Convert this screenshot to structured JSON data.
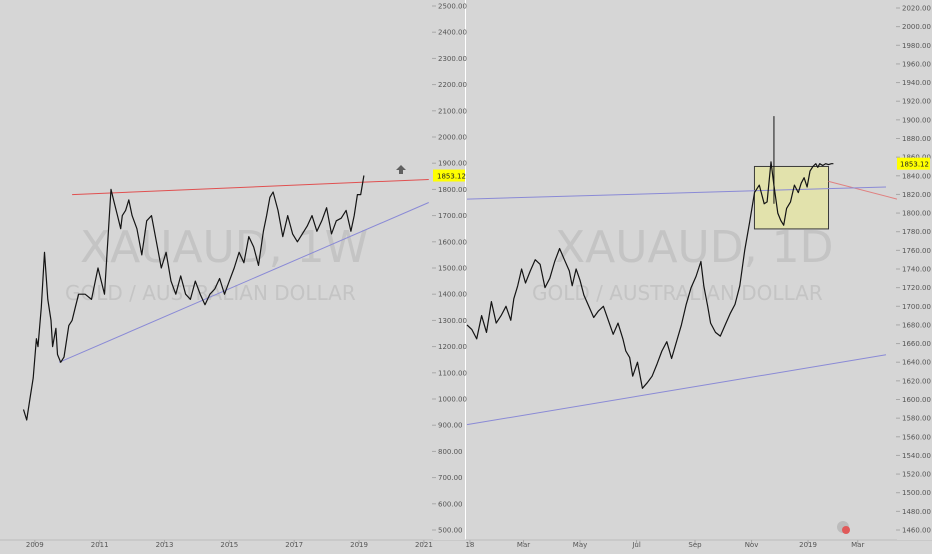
{
  "chart_data": [
    {
      "type": "line",
      "symbol": "XAUAUD",
      "interval": "1W",
      "watermark_symbol": "XAUAUD, 1W",
      "watermark_name": "GOLD / AUSTRALIAN DOLLAR",
      "price_label": "1853.12",
      "ylim": [
        500,
        2510
      ],
      "y_ticks": [
        "500.00",
        "600.00",
        "700.00",
        "800.00",
        "900.00",
        "1000.00",
        "1100.00",
        "1200.00",
        "1300.00",
        "1400.00",
        "1500.00",
        "1600.00",
        "1700.00",
        "1800.00",
        "1900.00",
        "2000.00",
        "2100.00",
        "2200.00",
        "2300.00",
        "2400.00",
        "2500.00"
      ],
      "x_ticks": [
        "2009",
        "2011",
        "2013",
        "2015",
        "2017",
        "2019",
        "2021"
      ],
      "series": [
        {
          "x": [
            2008.6,
            2008.7,
            2008.8,
            2008.9,
            2009.0,
            2009.05,
            2009.15,
            2009.25,
            2009.35,
            2009.45,
            2009.5,
            2009.6,
            2009.65,
            2009.75,
            2009.85,
            2009.9,
            2010.0,
            2010.1,
            2010.2,
            2010.3,
            2010.5,
            2010.7,
            2010.9,
            2011.1,
            2011.3,
            2011.4,
            2011.5,
            2011.6,
            2011.65,
            2011.75,
            2011.85,
            2011.95,
            2012.1,
            2012.25,
            2012.4,
            2012.55,
            2012.7,
            2012.85,
            2013.0,
            2013.15,
            2013.3,
            2013.45,
            2013.6,
            2013.75,
            2013.9,
            2014.05,
            2014.2,
            2014.35,
            2014.5,
            2014.65,
            2014.8,
            2014.95,
            2015.1,
            2015.25,
            2015.4,
            2015.55,
            2015.7,
            2015.85,
            2016.0,
            2016.1,
            2016.2,
            2016.3,
            2016.45,
            2016.6,
            2016.75,
            2016.9,
            2017.05,
            2017.2,
            2017.35,
            2017.5,
            2017.65,
            2017.8,
            2017.95,
            2018.1,
            2018.25,
            2018.4,
            2018.55,
            2018.7,
            2018.8,
            2018.9,
            2019.0,
            2019.1
          ],
          "values": [
            960,
            920,
            1000,
            1080,
            1230,
            1200,
            1350,
            1560,
            1380,
            1300,
            1200,
            1270,
            1170,
            1140,
            1160,
            1200,
            1280,
            1300,
            1350,
            1400,
            1400,
            1380,
            1500,
            1400,
            1800,
            1750,
            1700,
            1650,
            1700,
            1720,
            1760,
            1700,
            1650,
            1550,
            1680,
            1700,
            1600,
            1500,
            1560,
            1450,
            1400,
            1470,
            1400,
            1380,
            1450,
            1400,
            1360,
            1400,
            1420,
            1460,
            1400,
            1450,
            1500,
            1560,
            1520,
            1620,
            1580,
            1510,
            1640,
            1700,
            1770,
            1790,
            1720,
            1620,
            1700,
            1630,
            1600,
            1630,
            1660,
            1700,
            1640,
            1680,
            1730,
            1630,
            1680,
            1690,
            1720,
            1640,
            1700,
            1780,
            1780,
            1853
          ]
        }
      ],
      "lines": [
        {
          "name": "resistance",
          "color": "#e05050",
          "from": [
            2010.1,
            1780
          ],
          "to": [
            2021.1,
            1838
          ]
        },
        {
          "name": "support",
          "color": "#8a8ad6",
          "from": [
            2009.7,
            1140
          ],
          "to": [
            2021.1,
            1750
          ]
        }
      ]
    },
    {
      "type": "line",
      "symbol": "XAUAUD",
      "interval": "1D",
      "watermark_symbol": "XAUAUD, 1D",
      "watermark_name": "GOLD / AUSTRALIAN DOLLAR",
      "price_label": "1853.12",
      "ylim": [
        1450,
        2025
      ],
      "y_ticks": [
        "1460.00",
        "1480.00",
        "1500.00",
        "1520.00",
        "1540.00",
        "1560.00",
        "1580.00",
        "1600.00",
        "1620.00",
        "1640.00",
        "1660.00",
        "1680.00",
        "1700.00",
        "1720.00",
        "1740.00",
        "1760.00",
        "1780.00",
        "1800.00",
        "1820.00",
        "1840.00",
        "1860.00",
        "1880.00",
        "1900.00",
        "1920.00",
        "1940.00",
        "1960.00",
        "1980.00",
        "2000.00",
        "2020.00"
      ],
      "x_ticks": [
        "18",
        "Mar",
        "May",
        "Jul",
        "Sep",
        "Nov",
        "2019",
        "Mar"
      ],
      "series": [
        {
          "x": [
            0,
            5,
            10,
            15,
            20,
            25,
            30,
            35,
            40,
            45,
            48,
            52,
            56,
            60,
            65,
            70,
            75,
            80,
            85,
            90,
            95,
            100,
            105,
            108,
            112,
            116,
            120,
            125,
            130,
            135,
            140,
            145,
            150,
            155,
            160,
            163,
            167,
            170,
            175,
            180,
            185,
            190,
            195,
            200,
            205,
            210,
            215,
            220,
            225,
            230,
            235,
            240,
            243,
            247,
            250,
            255,
            260,
            265,
            270,
            275,
            280,
            285,
            290,
            295,
            300,
            305,
            308,
            312,
            315,
            319,
            322,
            325,
            328,
            332,
            336,
            340,
            343,
            346,
            349,
            352,
            355,
            358,
            360,
            362,
            365,
            368,
            371,
            374,
            376
          ],
          "values": [
            1680,
            1675,
            1665,
            1690,
            1672,
            1705,
            1682,
            1690,
            1700,
            1685,
            1708,
            1722,
            1740,
            1725,
            1738,
            1750,
            1745,
            1720,
            1730,
            1748,
            1762,
            1750,
            1738,
            1722,
            1740,
            1728,
            1712,
            1700,
            1688,
            1695,
            1700,
            1685,
            1670,
            1682,
            1665,
            1652,
            1645,
            1625,
            1640,
            1612,
            1618,
            1625,
            1638,
            1652,
            1662,
            1644,
            1662,
            1680,
            1702,
            1720,
            1732,
            1748,
            1722,
            1700,
            1682,
            1672,
            1668,
            1680,
            1692,
            1702,
            1722,
            1760,
            1790,
            1822,
            1830,
            1810,
            1812,
            1855,
            1830,
            1800,
            1792,
            1787,
            1805,
            1812,
            1830,
            1822,
            1832,
            1838,
            1828,
            1845,
            1850,
            1853,
            1849,
            1853,
            1851,
            1853,
            1852,
            1853,
            1853
          ]
        }
      ],
      "spike": {
        "x": 315,
        "high": 1904,
        "low": 1810
      },
      "lines": [
        {
          "name": "upper-trend",
          "color": "#8a8ad6",
          "from": [
            0,
            1815
          ],
          "to": [
            430,
            1828
          ]
        },
        {
          "name": "lower-trend",
          "color": "#8a8ad6",
          "from": [
            0,
            1573
          ],
          "to": [
            430,
            1648
          ]
        }
      ],
      "zone": {
        "x_from": 295,
        "x_to": 371,
        "y_from": 1783,
        "y_to": 1850
      }
    }
  ]
}
